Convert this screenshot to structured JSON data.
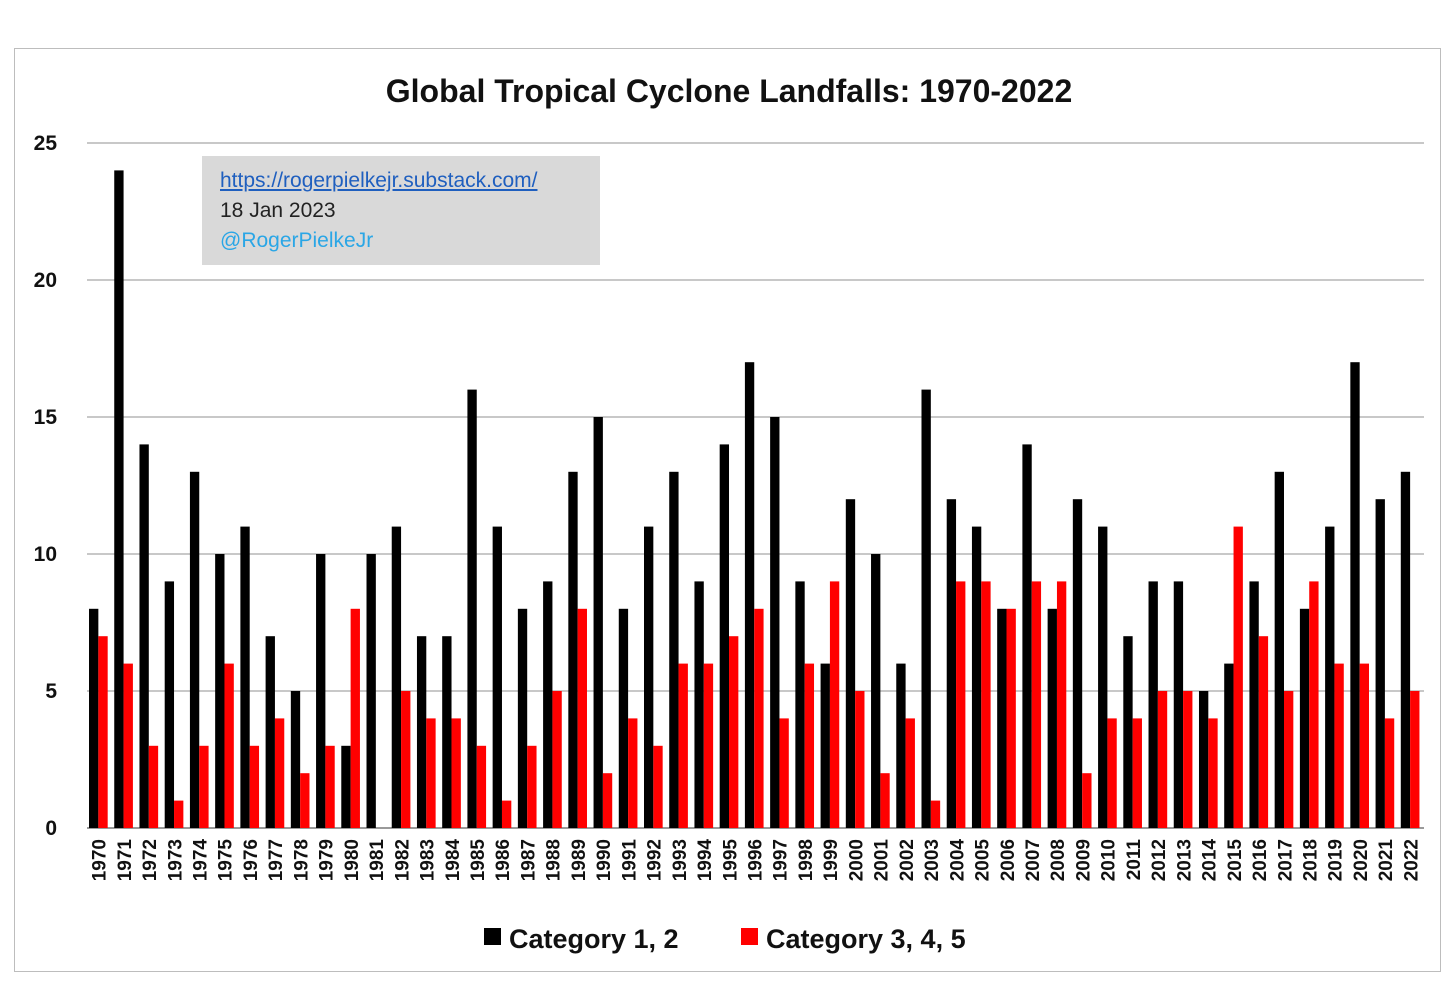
{
  "watermark": {
    "url": "https://rogerpielkejr.substack.com/",
    "date": "18 Jan 2023",
    "handle": "@RogerPielkeJr"
  },
  "colors": {
    "series1": "#000000",
    "series2": "#ff0000",
    "grid": "#c8c8c8"
  },
  "chart_data": {
    "type": "bar",
    "title": "Global Tropical Cyclone Landfalls: 1970-2022",
    "xlabel": "",
    "ylabel": "",
    "ylim": [
      0,
      25
    ],
    "yticks": [
      0,
      5,
      10,
      15,
      20,
      25
    ],
    "grid": true,
    "legend_position": "bottom",
    "categories": [
      "1970",
      "1971",
      "1972",
      "1973",
      "1974",
      "1975",
      "1976",
      "1977",
      "1978",
      "1979",
      "1980",
      "1981",
      "1982",
      "1983",
      "1984",
      "1985",
      "1986",
      "1987",
      "1988",
      "1989",
      "1990",
      "1991",
      "1992",
      "1993",
      "1994",
      "1995",
      "1996",
      "1997",
      "1998",
      "1999",
      "2000",
      "2001",
      "2002",
      "2003",
      "2004",
      "2005",
      "2006",
      "2007",
      "2008",
      "2009",
      "2010",
      "2011",
      "2012",
      "2013",
      "2014",
      "2015",
      "2016",
      "2017",
      "2018",
      "2019",
      "2020",
      "2021",
      "2022"
    ],
    "series": [
      {
        "name": "Category 1, 2",
        "color": "#000000",
        "values": [
          8,
          24,
          14,
          9,
          13,
          10,
          11,
          7,
          5,
          10,
          3,
          10,
          11,
          7,
          7,
          16,
          11,
          8,
          9,
          13,
          15,
          8,
          11,
          13,
          9,
          14,
          17,
          15,
          9,
          6,
          12,
          10,
          6,
          16,
          12,
          11,
          8,
          14,
          8,
          12,
          11,
          7,
          9,
          9,
          5,
          6,
          9,
          13,
          8,
          11,
          17,
          12,
          13
        ]
      },
      {
        "name": "Category 3, 4, 5",
        "color": "#ff0000",
        "values": [
          7,
          6,
          3,
          1,
          3,
          6,
          3,
          4,
          2,
          3,
          8,
          0,
          5,
          4,
          4,
          3,
          1,
          3,
          5,
          8,
          2,
          4,
          3,
          6,
          6,
          7,
          8,
          4,
          6,
          9,
          5,
          2,
          4,
          1,
          9,
          9,
          8,
          9,
          9,
          2,
          4,
          4,
          5,
          5,
          4,
          11,
          7,
          5,
          9,
          6,
          6,
          4,
          5
        ]
      }
    ]
  }
}
